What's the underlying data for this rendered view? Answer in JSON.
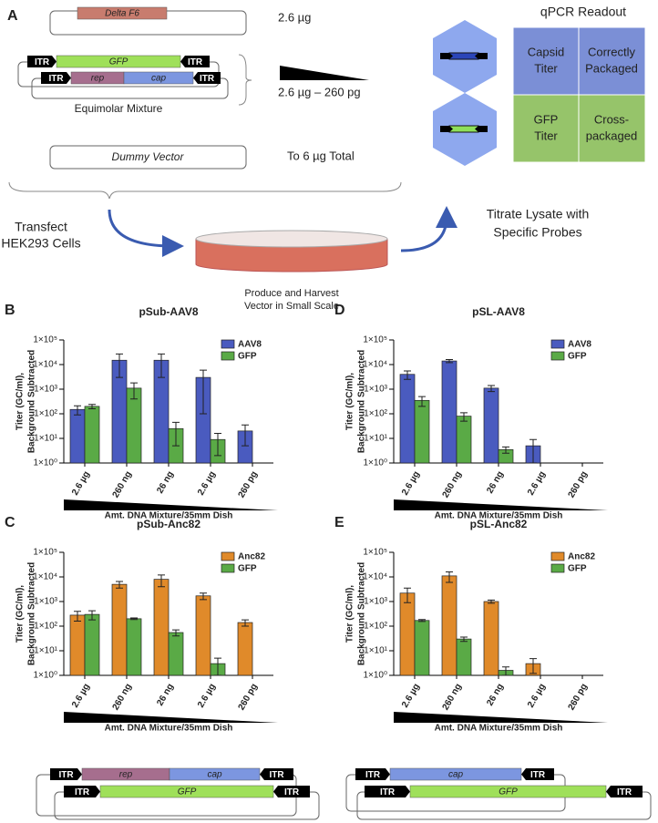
{
  "panel_a": {
    "label": "A",
    "delta_f6": "Delta F6",
    "amount_1": "2.6 µg",
    "plasmid_gfp": [
      "ITR",
      "GFP",
      "ITR"
    ],
    "plasmid_repcap": [
      "ITR",
      "rep",
      "cap",
      "ITR"
    ],
    "mixture_label": "Equimolar Mixture",
    "amount_range": "2.6 µg – 260 pg",
    "dummy": "Dummy Vector",
    "amount_total": "To 6 µg Total",
    "transfect": [
      "Transfect",
      "HEK293 Cells"
    ],
    "produce": [
      "Produce and Harvest",
      "Vector in Small Scale"
    ],
    "titrate": [
      "Titrate Lysate with",
      "Specific Probes"
    ],
    "qpcr_title": "qPCR Readout",
    "qpcr_table": [
      [
        [
          "Capsid",
          "Titer"
        ],
        [
          "Correctly",
          "Packaged"
        ]
      ],
      [
        [
          "GFP",
          "Titer"
        ],
        [
          "Cross-",
          "packaged"
        ]
      ]
    ]
  },
  "bottom_left": {
    "top": [
      "ITR",
      "rep",
      "cap",
      "ITR"
    ],
    "bottom": [
      "ITR",
      "GFP",
      "ITR"
    ]
  },
  "bottom_right": {
    "top": [
      "ITR",
      "cap",
      "ITR"
    ],
    "bottom": [
      "ITR",
      "GFP",
      "ITR"
    ]
  },
  "chart_data": [
    {
      "type": "bar",
      "panel": "B",
      "title": "pSub-AAV8",
      "categories": [
        "2.6 µg",
        "260 ng",
        "26 ng",
        "2.6 µg",
        "260 pg"
      ],
      "series": [
        {
          "name": "AAV8",
          "color": "#4a5bbf",
          "values": [
            150,
            15000,
            15000,
            3000,
            20
          ],
          "errors": [
            60,
            12000,
            12000,
            2900,
            15
          ]
        },
        {
          "name": "GFP",
          "color": "#5aaa46",
          "values": [
            200,
            1100,
            25,
            9,
            null
          ],
          "errors": [
            40,
            700,
            20,
            7,
            null
          ]
        }
      ],
      "ylim": [
        1,
        100000
      ],
      "yticks": [
        {
          "value": 1,
          "label": "1×10⁰"
        },
        {
          "value": 10,
          "label": "1×10¹"
        },
        {
          "value": 100,
          "label": "1×10²"
        },
        {
          "value": 1000,
          "label": "1×10³"
        },
        {
          "value": 10000,
          "label": "1×10⁴"
        },
        {
          "value": 100000,
          "label": "1×10⁵"
        }
      ],
      "log_scale": true,
      "ylabel": [
        "Titer (GC/ml),",
        "Background Subtracted"
      ],
      "xlabel": "Amt. DNA Mixture/35mm Dish",
      "legend": "upper right"
    },
    {
      "type": "bar",
      "panel": "C",
      "title": "pSub-Anc82",
      "categories": [
        "2.6 µg",
        "260 ng",
        "26 ng",
        "2.6 µg",
        "260 pg"
      ],
      "series": [
        {
          "name": "Anc82",
          "color": "#e08a2a",
          "values": [
            280,
            5000,
            8000,
            1700,
            140
          ],
          "errors": [
            120,
            1500,
            4000,
            500,
            40
          ]
        },
        {
          "name": "GFP",
          "color": "#5aaa46",
          "values": [
            300,
            200,
            55,
            3,
            null
          ],
          "errors": [
            120,
            15,
            15,
            2,
            null
          ]
        }
      ],
      "ylim": [
        1,
        100000
      ],
      "yticks": [
        {
          "value": 1,
          "label": "1×10⁰"
        },
        {
          "value": 10,
          "label": "1×10¹"
        },
        {
          "value": 100,
          "label": "1×10²"
        },
        {
          "value": 1000,
          "label": "1×10³"
        },
        {
          "value": 10000,
          "label": "1×10⁴"
        },
        {
          "value": 100000,
          "label": "1×10⁵"
        }
      ],
      "log_scale": true,
      "ylabel": [
        "Titer (GC/ml),",
        "Background Subtracted"
      ],
      "xlabel": "Amt. DNA Mixture/35mm Dish",
      "legend": "upper right"
    },
    {
      "type": "bar",
      "panel": "D",
      "title": "pSL-AAV8",
      "categories": [
        "2.6 µg",
        "260 ng",
        "26 ng",
        "2.6 µg",
        "260 pg"
      ],
      "series": [
        {
          "name": "AAV8",
          "color": "#4a5bbf",
          "values": [
            4000,
            14000,
            1100,
            5,
            null
          ],
          "errors": [
            1500,
            2000,
            300,
            4,
            null
          ]
        },
        {
          "name": "GFP",
          "color": "#5aaa46",
          "values": [
            350,
            80,
            3.5,
            null,
            null
          ],
          "errors": [
            150,
            30,
            1,
            null,
            null
          ]
        }
      ],
      "ylim": [
        1,
        100000
      ],
      "yticks": [
        {
          "value": 1,
          "label": "1×10⁰"
        },
        {
          "value": 10,
          "label": "1×10¹"
        },
        {
          "value": 100,
          "label": "1×10²"
        },
        {
          "value": 1000,
          "label": "1×10³"
        },
        {
          "value": 10000,
          "label": "1×10⁴"
        },
        {
          "value": 100000,
          "label": "1×10⁵"
        }
      ],
      "log_scale": true,
      "ylabel": [
        "Titer (GC/ml),",
        "Background Subtracted"
      ],
      "xlabel": "Amt. DNA Mixture/35mm Dish",
      "legend": "upper right"
    },
    {
      "type": "bar",
      "panel": "E",
      "title": "pSL-Anc82",
      "categories": [
        "2.6 µg",
        "260 ng",
        "26 ng",
        "2.6 µg",
        "260 pg"
      ],
      "series": [
        {
          "name": "Anc82",
          "color": "#e08a2a",
          "values": [
            2200,
            11000,
            1000,
            3,
            null
          ],
          "errors": [
            1300,
            5000,
            150,
            1.8,
            null
          ]
        },
        {
          "name": "GFP",
          "color": "#5aaa46",
          "values": [
            170,
            30,
            1.6,
            null,
            null
          ],
          "errors": [
            15,
            6,
            0.6,
            null,
            null
          ]
        }
      ],
      "ylim": [
        1,
        100000
      ],
      "yticks": [
        {
          "value": 1,
          "label": "1×10⁰"
        },
        {
          "value": 10,
          "label": "1×10¹"
        },
        {
          "value": 100,
          "label": "1×10²"
        },
        {
          "value": 1000,
          "label": "1×10³"
        },
        {
          "value": 10000,
          "label": "1×10⁴"
        },
        {
          "value": 100000,
          "label": "1×10⁵"
        }
      ],
      "log_scale": true,
      "ylabel": [
        "Titer (GC/ml),",
        "Background Subtracted"
      ],
      "xlabel": "Amt. DNA Mixture/35mm Dish",
      "legend": "upper right"
    }
  ]
}
